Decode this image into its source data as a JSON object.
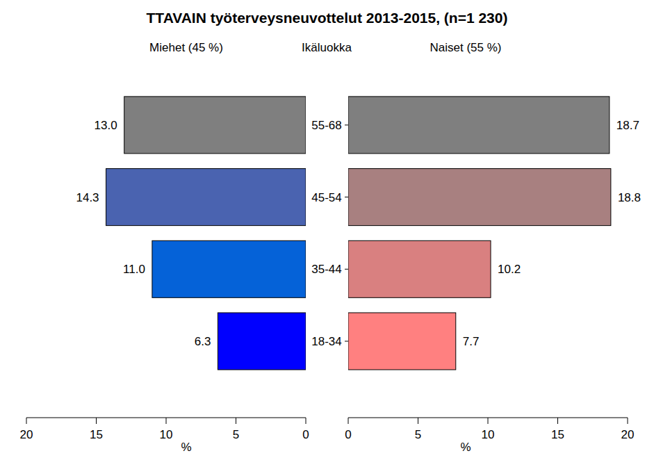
{
  "chart_data": {
    "type": "bar",
    "orientation": "horizontal",
    "title": "TTAVAIN työterveysneuvottelut 2013-2015, (n=1 230)",
    "category_label": "Ikäluokka",
    "x_label": "%",
    "categories": [
      "18-34",
      "35-44",
      "45-54",
      "55-68"
    ],
    "series": [
      {
        "name": "Miehet (45 %)",
        "colors": [
          "#0000ff",
          "#0562d8",
          "#4a63b0",
          "#7f7f7f"
        ],
        "values": [
          6.3,
          11.0,
          14.3,
          13.0
        ],
        "value_labels": [
          "6.3",
          "11.0",
          "14.3",
          "13.0"
        ]
      },
      {
        "name": "Naiset (55 %)",
        "colors": [
          "#ff8080",
          "#d98080",
          "#a88080",
          "#7f7f7f"
        ],
        "values": [
          7.7,
          10.2,
          18.8,
          18.7
        ]
      }
    ],
    "xlim": [
      0,
      20
    ],
    "xticks": [
      0,
      5,
      10,
      15,
      20
    ],
    "data_labels": true,
    "grid": false
  }
}
